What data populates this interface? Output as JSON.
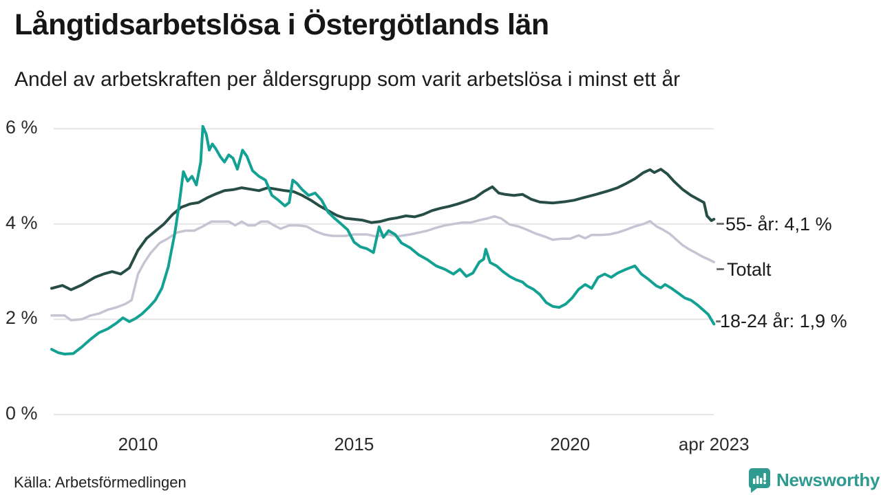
{
  "header": {
    "title": "Långtidsarbetslösa i Östergötlands län",
    "subtitle": "Andel av arbetskraften per åldersgrupp som varit arbetslösa i minst ett år"
  },
  "footer": {
    "source": "Källa: Arbetsförmedlingen",
    "brand": "Newsworthy"
  },
  "chart_data": {
    "type": "line",
    "title": "Långtidsarbetslösa i Östergötlands län",
    "subtitle": "Andel av arbetskraften per åldersgrupp som varit arbetslösa i minst ett år",
    "source": "Källa: Arbetsförmedlingen",
    "unit": "% av arbetskraften",
    "x_range": [
      2008,
      2023.33
    ],
    "ylim": [
      0,
      6.3
    ],
    "grid": "horizontal",
    "legend_position": "right-of-line-ends",
    "x_axis": {
      "ticks": [
        {
          "year": 2010,
          "label": "2010"
        },
        {
          "year": 2015,
          "label": "2015"
        },
        {
          "year": 2020,
          "label": "2020"
        },
        {
          "year": 2023.33,
          "label": "apr 2023"
        }
      ]
    },
    "y_axis": {
      "ticks": [
        {
          "value": 0,
          "label": "0 %"
        },
        {
          "value": 2,
          "label": "2 %"
        },
        {
          "value": 4,
          "label": "4 %"
        },
        {
          "value": 6,
          "label": "6 %"
        }
      ]
    },
    "series": [
      {
        "name": "55- år",
        "end_label": "55- år: 4,1 %",
        "last_value": "4,1 %",
        "color": "#274e46",
        "points": [
          [
            2008.0,
            2.65
          ],
          [
            2008.25,
            2.71
          ],
          [
            2008.45,
            2.62
          ],
          [
            2008.7,
            2.72
          ],
          [
            2009.0,
            2.88
          ],
          [
            2009.2,
            2.95
          ],
          [
            2009.4,
            3.0
          ],
          [
            2009.6,
            2.95
          ],
          [
            2009.8,
            3.08
          ],
          [
            2010.0,
            3.45
          ],
          [
            2010.2,
            3.7
          ],
          [
            2010.4,
            3.85
          ],
          [
            2010.6,
            4.0
          ],
          [
            2010.8,
            4.2
          ],
          [
            2011.0,
            4.35
          ],
          [
            2011.2,
            4.42
          ],
          [
            2011.4,
            4.45
          ],
          [
            2011.6,
            4.55
          ],
          [
            2011.8,
            4.63
          ],
          [
            2012.0,
            4.7
          ],
          [
            2012.2,
            4.72
          ],
          [
            2012.4,
            4.76
          ],
          [
            2012.6,
            4.73
          ],
          [
            2012.8,
            4.7
          ],
          [
            2013.0,
            4.76
          ],
          [
            2013.2,
            4.73
          ],
          [
            2013.4,
            4.7
          ],
          [
            2013.6,
            4.68
          ],
          [
            2013.8,
            4.6
          ],
          [
            2014.0,
            4.5
          ],
          [
            2014.2,
            4.38
          ],
          [
            2014.4,
            4.28
          ],
          [
            2014.6,
            4.18
          ],
          [
            2014.8,
            4.12
          ],
          [
            2015.0,
            4.1
          ],
          [
            2015.2,
            4.08
          ],
          [
            2015.4,
            4.03
          ],
          [
            2015.6,
            4.05
          ],
          [
            2015.8,
            4.1
          ],
          [
            2016.0,
            4.13
          ],
          [
            2016.2,
            4.17
          ],
          [
            2016.4,
            4.15
          ],
          [
            2016.6,
            4.2
          ],
          [
            2016.8,
            4.28
          ],
          [
            2017.0,
            4.33
          ],
          [
            2017.2,
            4.37
          ],
          [
            2017.4,
            4.42
          ],
          [
            2017.6,
            4.48
          ],
          [
            2017.8,
            4.55
          ],
          [
            2018.0,
            4.68
          ],
          [
            2018.2,
            4.78
          ],
          [
            2018.35,
            4.65
          ],
          [
            2018.5,
            4.62
          ],
          [
            2018.7,
            4.6
          ],
          [
            2018.9,
            4.62
          ],
          [
            2019.1,
            4.52
          ],
          [
            2019.3,
            4.46
          ],
          [
            2019.6,
            4.44
          ],
          [
            2019.9,
            4.47
          ],
          [
            2020.1,
            4.5
          ],
          [
            2020.3,
            4.55
          ],
          [
            2020.6,
            4.62
          ],
          [
            2020.9,
            4.7
          ],
          [
            2021.1,
            4.76
          ],
          [
            2021.3,
            4.85
          ],
          [
            2021.5,
            4.95
          ],
          [
            2021.7,
            5.08
          ],
          [
            2021.85,
            5.14
          ],
          [
            2021.95,
            5.08
          ],
          [
            2022.1,
            5.15
          ],
          [
            2022.25,
            5.05
          ],
          [
            2022.4,
            4.9
          ],
          [
            2022.6,
            4.73
          ],
          [
            2022.8,
            4.6
          ],
          [
            2023.0,
            4.5
          ],
          [
            2023.1,
            4.45
          ],
          [
            2023.17,
            4.17
          ],
          [
            2023.22,
            4.12
          ],
          [
            2023.27,
            4.07
          ],
          [
            2023.33,
            4.1
          ]
        ]
      },
      {
        "name": "Totalt",
        "end_label": "Totalt",
        "last_value": "3,2 %",
        "color": "#c6c4d2",
        "points": [
          [
            2008.0,
            2.08
          ],
          [
            2008.3,
            2.08
          ],
          [
            2008.45,
            1.98
          ],
          [
            2008.7,
            2.0
          ],
          [
            2008.9,
            2.08
          ],
          [
            2009.1,
            2.12
          ],
          [
            2009.3,
            2.2
          ],
          [
            2009.5,
            2.25
          ],
          [
            2009.7,
            2.32
          ],
          [
            2009.85,
            2.4
          ],
          [
            2010.0,
            2.95
          ],
          [
            2010.15,
            3.2
          ],
          [
            2010.3,
            3.4
          ],
          [
            2010.5,
            3.6
          ],
          [
            2010.7,
            3.7
          ],
          [
            2010.9,
            3.82
          ],
          [
            2011.1,
            3.86
          ],
          [
            2011.3,
            3.86
          ],
          [
            2011.5,
            3.95
          ],
          [
            2011.7,
            4.05
          ],
          [
            2011.9,
            4.05
          ],
          [
            2012.1,
            4.05
          ],
          [
            2012.25,
            3.97
          ],
          [
            2012.4,
            4.05
          ],
          [
            2012.55,
            3.97
          ],
          [
            2012.7,
            3.97
          ],
          [
            2012.85,
            4.05
          ],
          [
            2013.0,
            4.05
          ],
          [
            2013.15,
            3.97
          ],
          [
            2013.3,
            3.9
          ],
          [
            2013.5,
            3.97
          ],
          [
            2013.7,
            3.97
          ],
          [
            2013.9,
            3.95
          ],
          [
            2014.1,
            3.85
          ],
          [
            2014.3,
            3.78
          ],
          [
            2014.5,
            3.75
          ],
          [
            2014.8,
            3.75
          ],
          [
            2015.0,
            3.78
          ],
          [
            2015.3,
            3.78
          ],
          [
            2015.5,
            3.74
          ],
          [
            2015.8,
            3.78
          ],
          [
            2016.0,
            3.74
          ],
          [
            2016.3,
            3.78
          ],
          [
            2016.5,
            3.82
          ],
          [
            2016.7,
            3.86
          ],
          [
            2016.9,
            3.92
          ],
          [
            2017.1,
            3.97
          ],
          [
            2017.3,
            4.0
          ],
          [
            2017.5,
            4.03
          ],
          [
            2017.7,
            4.03
          ],
          [
            2017.9,
            4.08
          ],
          [
            2018.1,
            4.12
          ],
          [
            2018.25,
            4.16
          ],
          [
            2018.4,
            4.12
          ],
          [
            2018.6,
            3.99
          ],
          [
            2018.8,
            3.95
          ],
          [
            2019.0,
            3.88
          ],
          [
            2019.2,
            3.8
          ],
          [
            2019.4,
            3.74
          ],
          [
            2019.6,
            3.67
          ],
          [
            2019.8,
            3.69
          ],
          [
            2020.0,
            3.69
          ],
          [
            2020.2,
            3.76
          ],
          [
            2020.35,
            3.7
          ],
          [
            2020.5,
            3.77
          ],
          [
            2020.7,
            3.77
          ],
          [
            2020.9,
            3.78
          ],
          [
            2021.1,
            3.82
          ],
          [
            2021.3,
            3.88
          ],
          [
            2021.5,
            3.95
          ],
          [
            2021.7,
            4.0
          ],
          [
            2021.85,
            4.06
          ],
          [
            2022.0,
            3.95
          ],
          [
            2022.15,
            3.88
          ],
          [
            2022.3,
            3.8
          ],
          [
            2022.45,
            3.68
          ],
          [
            2022.6,
            3.56
          ],
          [
            2022.75,
            3.47
          ],
          [
            2022.9,
            3.4
          ],
          [
            2023.05,
            3.32
          ],
          [
            2023.2,
            3.26
          ],
          [
            2023.33,
            3.2
          ]
        ]
      },
      {
        "name": "18-24 år",
        "end_label": "18-24 år: 1,9 %",
        "last_value": "1,9 %",
        "color": "#12a192",
        "points": [
          [
            2008.0,
            1.37
          ],
          [
            2008.15,
            1.3
          ],
          [
            2008.3,
            1.27
          ],
          [
            2008.5,
            1.28
          ],
          [
            2008.7,
            1.42
          ],
          [
            2008.9,
            1.58
          ],
          [
            2009.1,
            1.72
          ],
          [
            2009.3,
            1.8
          ],
          [
            2009.5,
            1.92
          ],
          [
            2009.65,
            2.03
          ],
          [
            2009.8,
            1.95
          ],
          [
            2009.95,
            2.02
          ],
          [
            2010.1,
            2.12
          ],
          [
            2010.25,
            2.25
          ],
          [
            2010.4,
            2.4
          ],
          [
            2010.55,
            2.65
          ],
          [
            2010.7,
            3.1
          ],
          [
            2010.85,
            3.8
          ],
          [
            2010.95,
            4.4
          ],
          [
            2011.05,
            5.1
          ],
          [
            2011.15,
            4.9
          ],
          [
            2011.25,
            5.0
          ],
          [
            2011.35,
            4.82
          ],
          [
            2011.45,
            5.3
          ],
          [
            2011.5,
            6.05
          ],
          [
            2011.58,
            5.88
          ],
          [
            2011.65,
            5.55
          ],
          [
            2011.72,
            5.68
          ],
          [
            2011.8,
            5.58
          ],
          [
            2011.9,
            5.42
          ],
          [
            2012.0,
            5.3
          ],
          [
            2012.1,
            5.45
          ],
          [
            2012.2,
            5.38
          ],
          [
            2012.3,
            5.15
          ],
          [
            2012.42,
            5.55
          ],
          [
            2012.52,
            5.42
          ],
          [
            2012.65,
            5.12
          ],
          [
            2012.8,
            5.0
          ],
          [
            2012.95,
            4.92
          ],
          [
            2013.1,
            4.6
          ],
          [
            2013.25,
            4.5
          ],
          [
            2013.4,
            4.38
          ],
          [
            2013.5,
            4.45
          ],
          [
            2013.58,
            4.92
          ],
          [
            2013.68,
            4.85
          ],
          [
            2013.8,
            4.72
          ],
          [
            2013.95,
            4.6
          ],
          [
            2014.1,
            4.65
          ],
          [
            2014.25,
            4.5
          ],
          [
            2014.4,
            4.25
          ],
          [
            2014.55,
            4.12
          ],
          [
            2014.7,
            4.0
          ],
          [
            2014.85,
            3.88
          ],
          [
            2015.0,
            3.62
          ],
          [
            2015.15,
            3.52
          ],
          [
            2015.3,
            3.48
          ],
          [
            2015.45,
            3.4
          ],
          [
            2015.58,
            3.94
          ],
          [
            2015.68,
            3.72
          ],
          [
            2015.8,
            3.86
          ],
          [
            2015.95,
            3.78
          ],
          [
            2016.1,
            3.6
          ],
          [
            2016.3,
            3.5
          ],
          [
            2016.5,
            3.35
          ],
          [
            2016.7,
            3.25
          ],
          [
            2016.9,
            3.12
          ],
          [
            2017.1,
            3.05
          ],
          [
            2017.3,
            2.95
          ],
          [
            2017.45,
            3.05
          ],
          [
            2017.6,
            2.9
          ],
          [
            2017.75,
            2.97
          ],
          [
            2017.9,
            3.2
          ],
          [
            2018.0,
            3.26
          ],
          [
            2018.05,
            3.47
          ],
          [
            2018.15,
            3.19
          ],
          [
            2018.3,
            3.12
          ],
          [
            2018.45,
            3.0
          ],
          [
            2018.6,
            2.9
          ],
          [
            2018.75,
            2.83
          ],
          [
            2018.9,
            2.78
          ],
          [
            2019.0,
            2.7
          ],
          [
            2019.15,
            2.63
          ],
          [
            2019.3,
            2.52
          ],
          [
            2019.45,
            2.35
          ],
          [
            2019.6,
            2.27
          ],
          [
            2019.75,
            2.25
          ],
          [
            2019.9,
            2.32
          ],
          [
            2020.05,
            2.45
          ],
          [
            2020.2,
            2.63
          ],
          [
            2020.35,
            2.73
          ],
          [
            2020.5,
            2.65
          ],
          [
            2020.65,
            2.88
          ],
          [
            2020.8,
            2.95
          ],
          [
            2020.95,
            2.88
          ],
          [
            2021.1,
            2.97
          ],
          [
            2021.3,
            3.05
          ],
          [
            2021.5,
            3.12
          ],
          [
            2021.65,
            2.95
          ],
          [
            2021.8,
            2.85
          ],
          [
            2022.0,
            2.7
          ],
          [
            2022.1,
            2.66
          ],
          [
            2022.2,
            2.73
          ],
          [
            2022.35,
            2.65
          ],
          [
            2022.5,
            2.55
          ],
          [
            2022.65,
            2.45
          ],
          [
            2022.8,
            2.4
          ],
          [
            2022.95,
            2.3
          ],
          [
            2023.1,
            2.18
          ],
          [
            2023.2,
            2.1
          ],
          [
            2023.33,
            1.9
          ]
        ]
      }
    ],
    "colors": {
      "grid": "#e5e5e9",
      "series_55": "#274e46",
      "series_total": "#c6c4d2",
      "series_1824": "#12a192",
      "brand_teal": "#2e9a90"
    }
  }
}
